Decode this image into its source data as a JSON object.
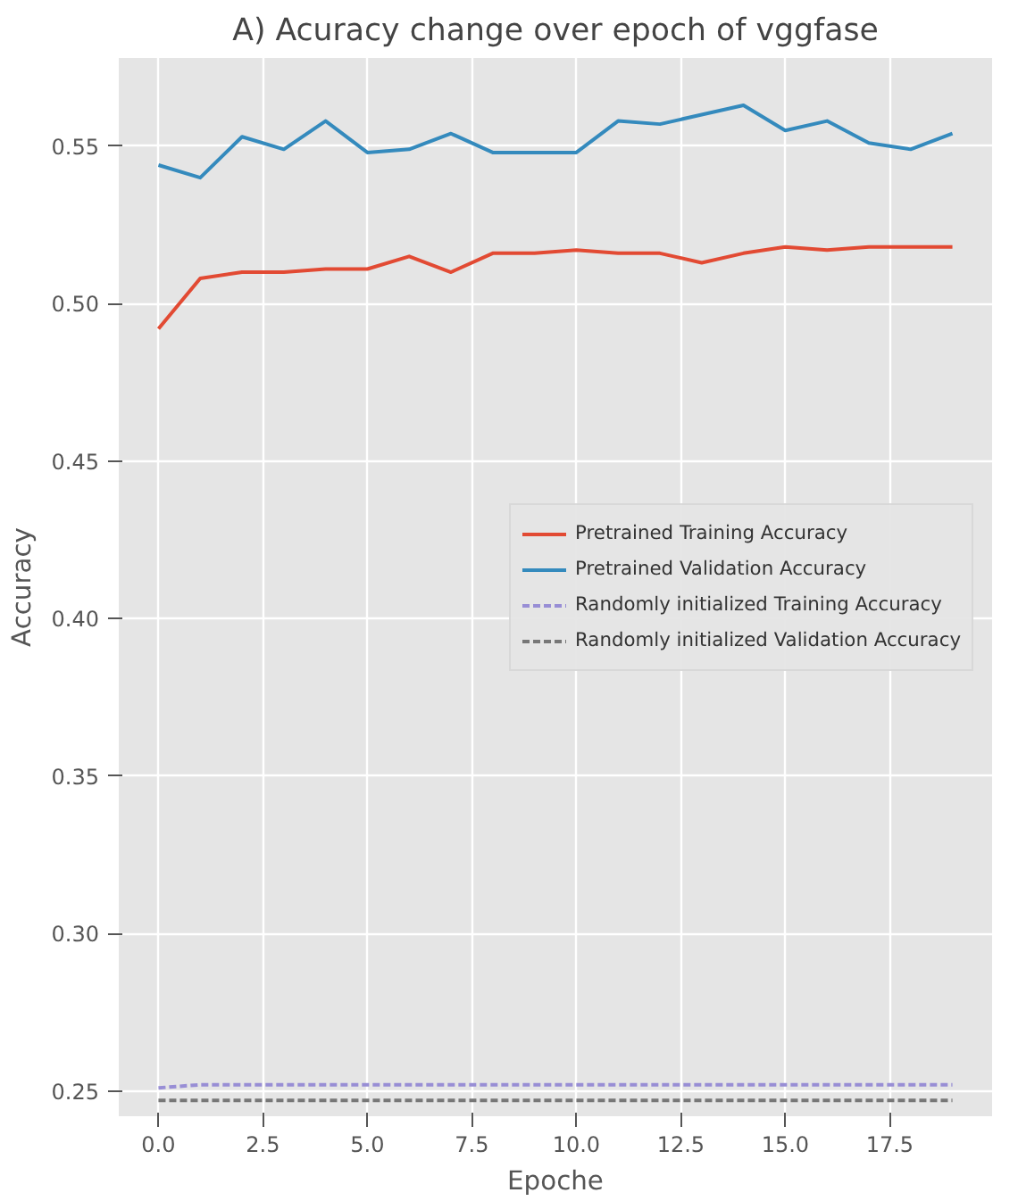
{
  "chart_data": {
    "type": "line",
    "title": "A) Acuracy change over epoch of vggfase",
    "xlabel": "Epoche",
    "ylabel": "Accuracy",
    "x": [
      0,
      1,
      2,
      3,
      4,
      5,
      6,
      7,
      8,
      9,
      10,
      11,
      12,
      13,
      14,
      15,
      16,
      17,
      18,
      19
    ],
    "series": [
      {
        "name": "Pretrained Training Accuracy",
        "color": "#e24a33",
        "line_style": "solid",
        "values": [
          0.492,
          0.508,
          0.51,
          0.51,
          0.511,
          0.511,
          0.515,
          0.51,
          0.516,
          0.516,
          0.517,
          0.516,
          0.516,
          0.513,
          0.516,
          0.518,
          0.517,
          0.518,
          0.518,
          0.518
        ]
      },
      {
        "name": "Pretrained Validation Accuracy",
        "color": "#348abd",
        "line_style": "solid",
        "values": [
          0.544,
          0.54,
          0.553,
          0.549,
          0.558,
          0.548,
          0.549,
          0.554,
          0.548,
          0.548,
          0.548,
          0.558,
          0.557,
          0.56,
          0.563,
          0.555,
          0.558,
          0.551,
          0.549,
          0.554
        ]
      },
      {
        "name": "Randomly initialized Training Accuracy",
        "color": "#988ed5",
        "line_style": "dashed",
        "values": [
          0.251,
          0.252,
          0.252,
          0.252,
          0.252,
          0.252,
          0.252,
          0.252,
          0.252,
          0.252,
          0.252,
          0.252,
          0.252,
          0.252,
          0.252,
          0.252,
          0.252,
          0.252,
          0.252,
          0.252
        ]
      },
      {
        "name": "Randomly initialized Validation Accuracy",
        "color": "#777777",
        "line_style": "dashed",
        "values": [
          0.247,
          0.247,
          0.247,
          0.247,
          0.247,
          0.247,
          0.247,
          0.247,
          0.247,
          0.247,
          0.247,
          0.247,
          0.247,
          0.247,
          0.247,
          0.247,
          0.247,
          0.247,
          0.247,
          0.247
        ]
      }
    ],
    "xlim": [
      -0.95,
      19.95
    ],
    "ylim": [
      0.242,
      0.578
    ],
    "xticks": [
      {
        "value": 0,
        "label": "0.0"
      },
      2.5,
      {
        "value": 5,
        "label": "5.0"
      },
      7.5,
      {
        "value": 10,
        "label": "10.0"
      },
      12.5,
      {
        "value": 15,
        "label": "15.0"
      },
      17.5
    ],
    "yticks": [
      {
        "value": 0.25,
        "label": "0.25"
      },
      {
        "value": 0.3,
        "label": "0.30"
      },
      0.35,
      {
        "value": 0.4,
        "label": "0.40"
      },
      0.45,
      {
        "value": 0.5,
        "label": "0.50"
      },
      0.55
    ],
    "grid": true,
    "legend": "right"
  }
}
